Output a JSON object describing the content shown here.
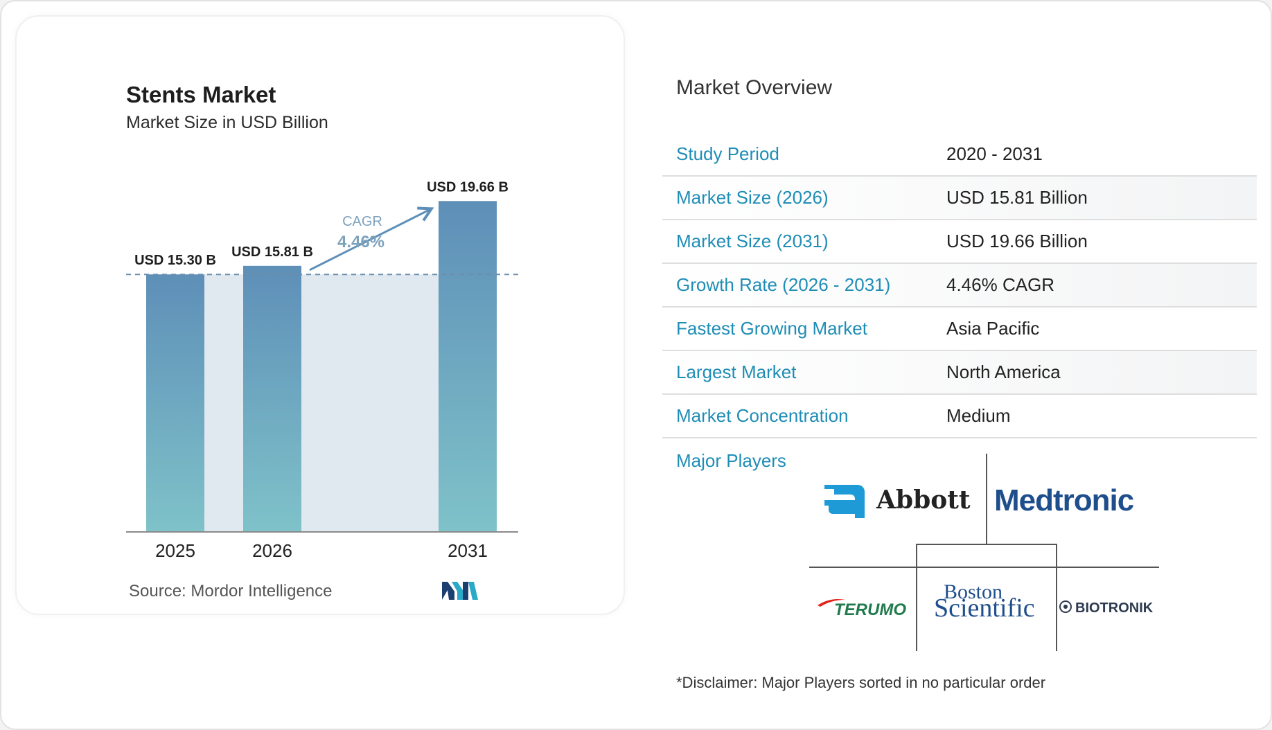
{
  "chart_data": {
    "type": "bar",
    "title": "Stents Market",
    "subtitle": "Market Size in USD Billion",
    "categories": [
      "2025",
      "2026",
      "2031"
    ],
    "values": [
      15.3,
      15.81,
      19.66
    ],
    "value_labels": [
      "USD 15.30 B",
      "USD 15.81 B",
      "USD 19.66 B"
    ],
    "cagr_label": "CAGR",
    "cagr_value": "4.46%",
    "colors": {
      "bar_top": "#5e8fb8",
      "bar_bottom": "#7fc2c9",
      "shade": "#e0e8f0",
      "dash": "#6d8eaa",
      "arrow": "#5e8fb8",
      "cagr": "#7da2bd"
    }
  },
  "source": "Source:  Mordor Intelligence",
  "overview": {
    "title": "Market Overview",
    "rows": [
      {
        "label": "Study Period",
        "value": "2020 - 2031"
      },
      {
        "label": "Market Size (2026)",
        "value": "USD 15.81 Billion"
      },
      {
        "label": "Market Size (2031)",
        "value": "USD 19.66 Billion"
      },
      {
        "label": "Growth Rate (2026 - 2031)",
        "value": "4.46% CAGR"
      },
      {
        "label": "Fastest Growing Market",
        "value": "Asia Pacific"
      },
      {
        "label": "Largest Market",
        "value": "North America"
      },
      {
        "label": "Market Concentration",
        "value": "Medium"
      }
    ]
  },
  "major_players": {
    "label": "Major Players",
    "logos": [
      "Abbott",
      "Medtronic",
      "TERUMO",
      "Boston",
      "Scientific",
      "BIOTRONIK"
    ]
  },
  "disclaimer": "*Disclaimer: Major Players sorted in no particular order",
  "accent_color": "#1f8db6"
}
